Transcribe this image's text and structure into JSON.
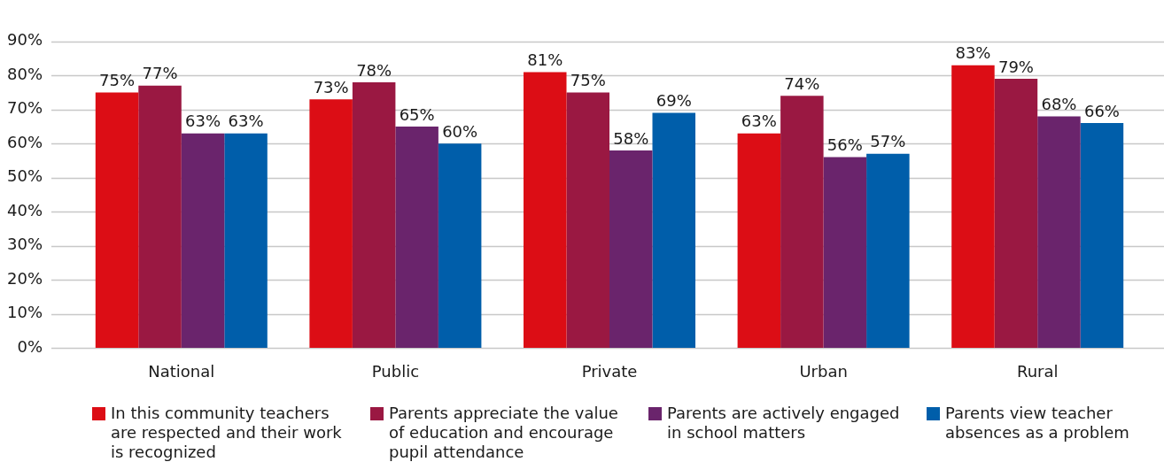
{
  "chart_data": {
    "type": "bar",
    "categories": [
      "National",
      "Public",
      "Private",
      "Urban",
      "Rural"
    ],
    "series": [
      {
        "name": "In this community teachers are respected and their work is recognized",
        "color": "#dc0d15",
        "values": [
          75,
          73,
          81,
          63,
          83
        ],
        "value_labels": [
          "75%",
          "73%",
          "81%",
          "63%",
          "83%"
        ]
      },
      {
        "name": "Parents appreciate the value of education and encourage pupil attendance",
        "color": "#9a1842",
        "values": [
          77,
          78,
          75,
          74,
          79
        ],
        "value_labels": [
          "77%",
          "78%",
          "75%",
          "74%",
          "79%"
        ]
      },
      {
        "name": "Parents are actively engaged in school matters",
        "color": "#6a246c",
        "values": [
          63,
          65,
          58,
          56,
          68
        ],
        "value_labels": [
          "63%",
          "65%",
          "58%",
          "56%",
          "68%"
        ]
      },
      {
        "name": "Parents view teacher absences as a problem",
        "color": "#005eaa",
        "values": [
          63,
          60,
          69,
          57,
          66
        ],
        "value_labels": [
          "63%",
          "60%",
          "69%",
          "57%",
          "66%"
        ]
      }
    ],
    "ylim": [
      0,
      90
    ],
    "yticks": [
      {
        "value": 0,
        "label": "0%"
      },
      {
        "value": 10,
        "label": "10%"
      },
      {
        "value": 20,
        "label": "20%"
      },
      {
        "value": 30,
        "label": "30%"
      },
      {
        "value": 40,
        "label": "40%"
      },
      {
        "value": 50,
        "label": "50%"
      },
      {
        "value": 60,
        "label": "60%"
      },
      {
        "value": 70,
        "label": "70%"
      },
      {
        "value": 80,
        "label": "80%"
      },
      {
        "value": 90,
        "label": "90%"
      }
    ],
    "grid": "y",
    "legend": "bottom"
  }
}
